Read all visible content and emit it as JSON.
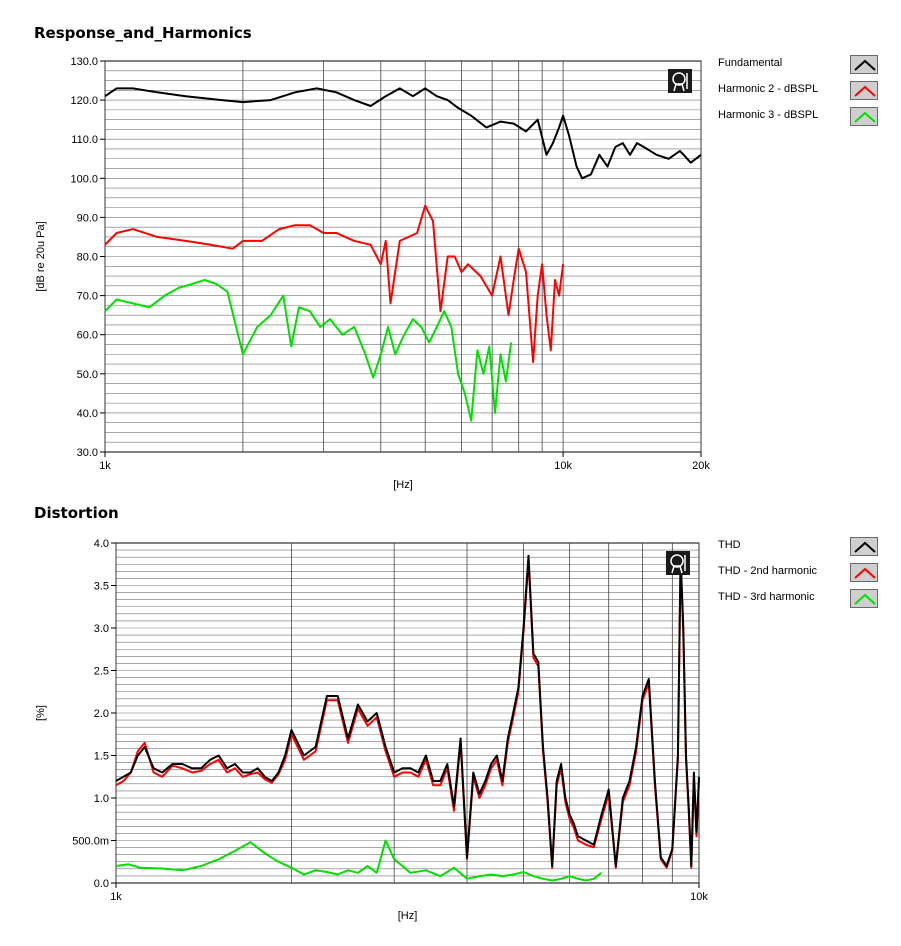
{
  "chart_data": [
    {
      "type": "line",
      "title": "Response_and_Harmonics",
      "xlabel": "[Hz]",
      "ylabel": "[dB re 20u Pa]",
      "xscale": "log",
      "xlim": [
        1000,
        20000
      ],
      "ylim": [
        30,
        130
      ],
      "xticks": [
        1000,
        10000,
        20000
      ],
      "xticklabels": [
        "1k",
        "10k",
        "20k"
      ],
      "yticks": [
        30,
        40,
        50,
        60,
        70,
        80,
        90,
        100,
        110,
        120,
        130
      ],
      "yticklabels": [
        "30.0",
        "40.0",
        "50.0",
        "60.0",
        "70.0",
        "80.0",
        "90.0",
        "100.0",
        "110.0",
        "120.0",
        "130.0"
      ],
      "grid": true,
      "legend_position": "right",
      "series": [
        {
          "name": "Fundamental",
          "color": "#000000",
          "x": [
            1000,
            1060,
            1150,
            1300,
            1500,
            1800,
            2000,
            2300,
            2600,
            2900,
            3200,
            3500,
            3800,
            4100,
            4400,
            4700,
            5000,
            5300,
            5600,
            5900,
            6300,
            6800,
            7300,
            7800,
            8300,
            8800,
            9200,
            9500,
            9800,
            10000,
            10300,
            10700,
            11000,
            11500,
            12000,
            12500,
            13000,
            13500,
            14000,
            14500,
            15000,
            16000,
            17000,
            18000,
            19000,
            20000
          ],
          "y": [
            121,
            123,
            123,
            122,
            121,
            120,
            119.5,
            120,
            122,
            123,
            122,
            120,
            118.5,
            121,
            123,
            121,
            123,
            121,
            120,
            118,
            116,
            113,
            114.5,
            114,
            112,
            115,
            106,
            109,
            113,
            116,
            111,
            103,
            100,
            101,
            106,
            103,
            108,
            109,
            106,
            109,
            108,
            106,
            105,
            107,
            104,
            106
          ]
        },
        {
          "name": "Harmonic 2 - dBSPL",
          "color": "#ff0000",
          "x": [
            1000,
            1060,
            1150,
            1300,
            1500,
            1700,
            1900,
            2000,
            2200,
            2400,
            2600,
            2800,
            3000,
            3200,
            3500,
            3800,
            4000,
            4100,
            4200,
            4400,
            4600,
            4800,
            5000,
            5200,
            5400,
            5600,
            5800,
            6000,
            6200,
            6600,
            7000,
            7300,
            7600,
            7800,
            8000,
            8300,
            8600,
            8800,
            9000,
            9200,
            9400,
            9600,
            9800,
            10000
          ],
          "y": [
            83,
            86,
            87,
            85,
            84,
            83,
            82,
            84,
            84,
            87,
            88,
            88,
            86,
            86,
            84,
            83,
            78,
            84,
            68,
            84,
            85,
            86,
            93,
            89,
            66,
            80,
            80,
            76,
            78,
            75,
            70,
            80,
            65,
            74,
            82,
            76,
            53,
            70,
            78,
            65,
            56,
            74,
            70,
            78
          ]
        },
        {
          "name": "Harmonic 3 - dBSPL",
          "color": "#00e000",
          "x": [
            1000,
            1060,
            1150,
            1250,
            1350,
            1450,
            1550,
            1650,
            1750,
            1850,
            2000,
            2150,
            2300,
            2450,
            2550,
            2650,
            2800,
            2950,
            3100,
            3300,
            3500,
            3700,
            3850,
            4000,
            4150,
            4300,
            4500,
            4700,
            4900,
            5100,
            5300,
            5500,
            5700,
            5900,
            6100,
            6300,
            6500,
            6700,
            6900,
            7100,
            7300,
            7500,
            7700
          ],
          "y": [
            66,
            69,
            68,
            67,
            70,
            72,
            73,
            74,
            73,
            71,
            55,
            62,
            65,
            70,
            57,
            67,
            66,
            62,
            64,
            60,
            62,
            55,
            49,
            55,
            62,
            55,
            60,
            64,
            62,
            58,
            62,
            66,
            62,
            50,
            45,
            38,
            56,
            50,
            57,
            40,
            55,
            48,
            58
          ]
        }
      ]
    },
    {
      "type": "line",
      "title": "Distortion",
      "xlabel": "[Hz]",
      "ylabel": "[%]",
      "xscale": "log",
      "xlim": [
        1000,
        10000
      ],
      "ylim": [
        0,
        4
      ],
      "xticks": [
        1000,
        10000
      ],
      "xticklabels": [
        "1k",
        "10k"
      ],
      "yticks": [
        0,
        0.5,
        1,
        1.5,
        2,
        2.5,
        3,
        3.5,
        4
      ],
      "yticklabels": [
        "0.0",
        "500.0m",
        "1.0",
        "1.5",
        "2.0",
        "2.5",
        "3.0",
        "3.5",
        "4.0"
      ],
      "grid": true,
      "legend_position": "right",
      "series": [
        {
          "name": "THD",
          "color": "#000000",
          "x": [
            1000,
            1030,
            1060,
            1090,
            1120,
            1160,
            1200,
            1250,
            1300,
            1350,
            1400,
            1450,
            1500,
            1550,
            1600,
            1650,
            1700,
            1750,
            1800,
            1850,
            1900,
            1950,
            2000,
            2100,
            2200,
            2300,
            2400,
            2500,
            2600,
            2700,
            2800,
            2900,
            3000,
            3100,
            3200,
            3300,
            3400,
            3500,
            3600,
            3700,
            3800,
            3900,
            4000,
            4100,
            4200,
            4300,
            4400,
            4500,
            4600,
            4700,
            4800,
            4900,
            5000,
            5100,
            5200,
            5300,
            5400,
            5500,
            5600,
            5700,
            5800,
            5900,
            6000,
            6100,
            6200,
            6400,
            6600,
            6800,
            7000,
            7200,
            7400,
            7600,
            7800,
            8000,
            8200,
            8400,
            8600,
            8800,
            9000,
            9200,
            9300,
            9400,
            9500,
            9600,
            9700,
            9800,
            9900,
            10000
          ],
          "y": [
            1.2,
            1.25,
            1.3,
            1.5,
            1.6,
            1.35,
            1.3,
            1.4,
            1.4,
            1.35,
            1.35,
            1.45,
            1.5,
            1.35,
            1.4,
            1.3,
            1.3,
            1.35,
            1.25,
            1.2,
            1.3,
            1.5,
            1.8,
            1.5,
            1.6,
            2.2,
            2.2,
            1.7,
            2.1,
            1.9,
            2.0,
            1.6,
            1.3,
            1.35,
            1.35,
            1.3,
            1.5,
            1.2,
            1.2,
            1.4,
            0.9,
            1.7,
            0.3,
            1.3,
            1.05,
            1.2,
            1.4,
            1.5,
            1.2,
            1.7,
            2.0,
            2.3,
            3.0,
            3.85,
            2.7,
            2.6,
            1.6,
            1.0,
            0.2,
            1.2,
            1.4,
            1.0,
            0.8,
            0.7,
            0.55,
            0.5,
            0.45,
            0.8,
            1.1,
            0.2,
            1.0,
            1.2,
            1.6,
            2.2,
            2.4,
            1.2,
            0.3,
            0.2,
            0.4,
            1.5,
            3.85,
            3.0,
            1.5,
            0.9,
            0.2,
            1.3,
            0.6,
            1.25
          ]
        },
        {
          "name": "THD - 2nd harmonic",
          "color": "#ff0000",
          "x": [
            1000,
            1030,
            1060,
            1090,
            1120,
            1160,
            1200,
            1250,
            1300,
            1350,
            1400,
            1450,
            1500,
            1550,
            1600,
            1650,
            1700,
            1750,
            1800,
            1850,
            1900,
            1950,
            2000,
            2100,
            2200,
            2300,
            2400,
            2500,
            2600,
            2700,
            2800,
            2900,
            3000,
            3100,
            3200,
            3300,
            3400,
            3500,
            3600,
            3700,
            3800,
            3900,
            4000,
            4100,
            4200,
            4300,
            4400,
            4500,
            4600,
            4700,
            4800,
            4900,
            5000,
            5100,
            5200,
            5300,
            5400,
            5500,
            5600,
            5700,
            5800,
            5900,
            6000,
            6100,
            6200,
            6400,
            6600,
            6800,
            7000,
            7200,
            7400,
            7600,
            7800,
            8000,
            8200,
            8400,
            8600,
            8800,
            9000,
            9200,
            9300,
            9400,
            9500,
            9600,
            9700,
            9800,
            9900,
            10000
          ],
          "y": [
            1.15,
            1.2,
            1.3,
            1.55,
            1.65,
            1.3,
            1.25,
            1.38,
            1.35,
            1.3,
            1.32,
            1.4,
            1.45,
            1.3,
            1.35,
            1.25,
            1.28,
            1.3,
            1.22,
            1.18,
            1.28,
            1.45,
            1.75,
            1.45,
            1.55,
            2.15,
            2.15,
            1.65,
            2.05,
            1.85,
            1.95,
            1.55,
            1.25,
            1.3,
            1.3,
            1.25,
            1.45,
            1.15,
            1.15,
            1.35,
            0.85,
            1.65,
            0.28,
            1.25,
            1.0,
            1.15,
            1.35,
            1.45,
            1.15,
            1.65,
            1.95,
            2.25,
            2.95,
            3.8,
            2.65,
            2.55,
            1.55,
            0.95,
            0.18,
            1.15,
            1.35,
            0.95,
            0.75,
            0.65,
            0.5,
            0.45,
            0.42,
            0.75,
            1.05,
            0.18,
            0.95,
            1.15,
            1.55,
            2.15,
            2.35,
            1.15,
            0.28,
            0.18,
            0.38,
            1.45,
            3.8,
            2.95,
            1.45,
            0.85,
            0.18,
            1.25,
            0.55,
            1.2
          ]
        },
        {
          "name": "THD - 3rd harmonic",
          "color": "#00e000",
          "x": [
            1000,
            1050,
            1100,
            1200,
            1300,
            1400,
            1500,
            1600,
            1700,
            1800,
            1900,
            2000,
            2100,
            2200,
            2300,
            2400,
            2500,
            2600,
            2700,
            2800,
            2900,
            3000,
            3200,
            3400,
            3600,
            3800,
            4000,
            4200,
            4400,
            4600,
            4800,
            5000,
            5200,
            5400,
            5600,
            5800,
            6000,
            6200,
            6400,
            6600,
            6800
          ],
          "y": [
            0.2,
            0.22,
            0.18,
            0.17,
            0.15,
            0.2,
            0.28,
            0.38,
            0.48,
            0.35,
            0.25,
            0.18,
            0.1,
            0.15,
            0.13,
            0.1,
            0.15,
            0.12,
            0.2,
            0.12,
            0.5,
            0.28,
            0.12,
            0.15,
            0.08,
            0.18,
            0.05,
            0.08,
            0.1,
            0.08,
            0.1,
            0.13,
            0.08,
            0.05,
            0.03,
            0.05,
            0.08,
            0.05,
            0.03,
            0.05,
            0.12
          ]
        }
      ]
    }
  ]
}
